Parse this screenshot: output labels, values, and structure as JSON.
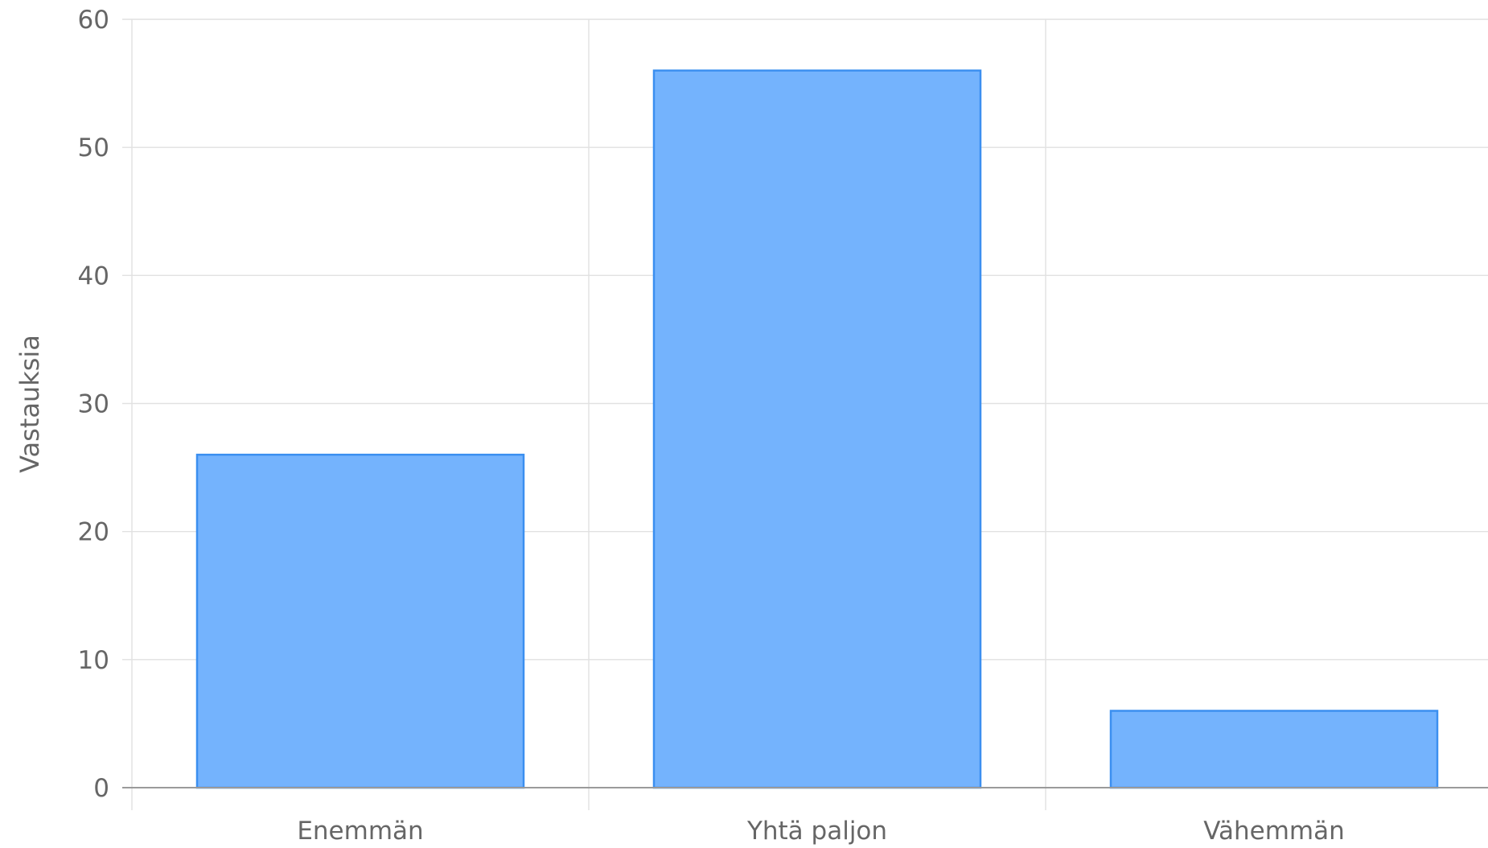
{
  "chart_data": {
    "type": "bar",
    "title": "",
    "xlabel": "",
    "ylabel": "Vastauksia",
    "categories": [
      "Enemmän",
      "Yhtä paljon",
      "Vähemmän"
    ],
    "series": [
      {
        "values": [
          26,
          56,
          6
        ]
      }
    ],
    "ylim": [
      0,
      60
    ],
    "yticks": [
      0,
      10,
      20,
      30,
      40,
      50,
      60
    ],
    "grid": true,
    "legend": "none",
    "colors": {
      "bar_fill": "#74b3fd",
      "bar_stroke": "#3b8ff0",
      "grid": "#e1e1e1",
      "axis": "#9a9a9a",
      "text": "#666666"
    }
  }
}
